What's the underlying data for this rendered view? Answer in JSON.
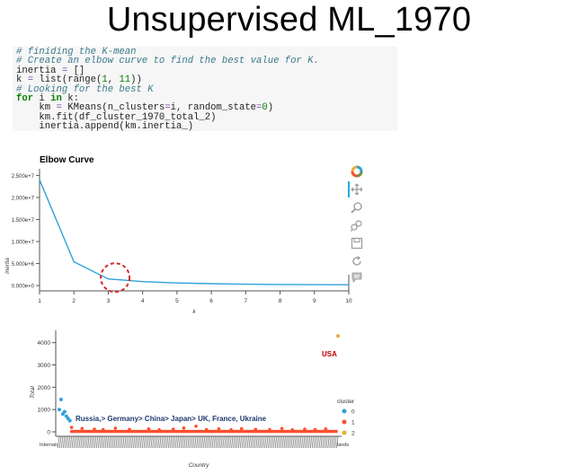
{
  "slide": {
    "title": "Unsupervised ML_1970"
  },
  "code": {
    "lines": [
      [
        {
          "t": "# finiding the K-mean",
          "c": "cm"
        }
      ],
      [
        {
          "t": "# Create an elbow curve to find the best value for K.",
          "c": "cm"
        }
      ],
      [
        {
          "t": "inertia ",
          "c": "pl"
        },
        {
          "t": "=",
          "c": "op"
        },
        {
          "t": " []",
          "c": "pl"
        }
      ],
      [
        {
          "t": "k ",
          "c": "pl"
        },
        {
          "t": "=",
          "c": "op"
        },
        {
          "t": " list(range(",
          "c": "pl"
        },
        {
          "t": "1",
          "c": "num"
        },
        {
          "t": ", ",
          "c": "pl"
        },
        {
          "t": "11",
          "c": "num"
        },
        {
          "t": "))",
          "c": "pl"
        }
      ],
      [
        {
          "t": "# Looking for the best K",
          "c": "cm"
        }
      ],
      [
        {
          "t": "for",
          "c": "kw"
        },
        {
          "t": " i ",
          "c": "pl"
        },
        {
          "t": "in",
          "c": "kw"
        },
        {
          "t": " k:",
          "c": "pl"
        }
      ],
      [
        {
          "t": "    km ",
          "c": "pl"
        },
        {
          "t": "=",
          "c": "op"
        },
        {
          "t": " KMeans(n_clusters",
          "c": "pl"
        },
        {
          "t": "=",
          "c": "op"
        },
        {
          "t": "i, random_state",
          "c": "pl"
        },
        {
          "t": "=",
          "c": "op"
        },
        {
          "t": "0",
          "c": "num"
        },
        {
          "t": ")",
          "c": "pl"
        }
      ],
      [
        {
          "t": "    km.fit(df_cluster_1970_total_2)",
          "c": "pl"
        }
      ],
      [
        {
          "t": "    inertia.append(km.inertia_)",
          "c": "pl"
        }
      ]
    ]
  },
  "toolbar": {
    "icons": [
      "bokeh-logo-icon",
      "pan-icon",
      "box-zoom-icon",
      "wheel-zoom-icon",
      "save-icon",
      "reset-icon",
      "hover-icon"
    ]
  },
  "colors": {
    "elbow_line": "#30a2da",
    "cluster_0": "#30a2da",
    "cluster_1": "#fc4f30",
    "cluster_2": "#e5ae38",
    "highlight_circle": "#d62728",
    "label_blue": "#1f3a6e",
    "label_red": "#c00000",
    "toolbar_active": "#26aae1"
  },
  "chart_data": [
    {
      "type": "line",
      "title": "Elbow Curve",
      "xlabel": "k",
      "ylabel": "inertia",
      "x": [
        1,
        2,
        3,
        4,
        5,
        6,
        7,
        8,
        9,
        10
      ],
      "y": [
        24000000,
        5400000,
        1500000,
        900000,
        600000,
        420000,
        300000,
        250000,
        200000,
        180000
      ],
      "xlim": [
        1,
        10
      ],
      "ylim": [
        -1200000,
        26500000
      ],
      "xticks": [
        "1",
        "2",
        "3",
        "4",
        "5",
        "6",
        "7",
        "8",
        "9",
        "10"
      ],
      "yticks": [
        {
          "value": 0,
          "label": "0.000e+0"
        },
        {
          "value": 5000000,
          "label": "5.000e+6"
        },
        {
          "value": 10000000,
          "label": "1.000e+7"
        },
        {
          "value": 15000000,
          "label": "1.500e+7"
        },
        {
          "value": 20000000,
          "label": "2.000e+7"
        },
        {
          "value": 25000000,
          "label": "2.500e+7"
        }
      ],
      "highlight": {
        "x": 3.2,
        "y": 1400000
      },
      "grid": false
    },
    {
      "type": "scatter",
      "title": "",
      "xlabel": "Country",
      "ylabel": "Total",
      "ylim": [
        -200,
        4550
      ],
      "yticks": [
        "0",
        "1000",
        "2000",
        "3000",
        "4000"
      ],
      "xtick_first": "Internati",
      "xtick_last": "lands",
      "legend": {
        "title": "cluster",
        "entries": [
          "0",
          "1",
          "2"
        ],
        "placement": "right"
      },
      "n_countries": 160,
      "series": [
        {
          "name": "0",
          "points": [
            [
              1,
              1000
            ],
            [
              2,
              1450
            ],
            [
              3,
              800
            ],
            [
              4,
              900
            ],
            [
              5,
              700
            ],
            [
              6,
              600
            ],
            [
              7,
              500
            ]
          ]
        },
        {
          "name": "1",
          "values_baseline": 20,
          "spikes": [
            [
              8,
              200
            ],
            [
              14,
              150
            ],
            [
              21,
              120
            ],
            [
              26,
              100
            ],
            [
              33,
              160
            ],
            [
              41,
              110
            ],
            [
              52,
              130
            ],
            [
              58,
              90
            ],
            [
              66,
              120
            ],
            [
              72,
              170
            ],
            [
              79,
              250
            ],
            [
              85,
              100
            ],
            [
              92,
              130
            ],
            [
              99,
              90
            ],
            [
              105,
              140
            ],
            [
              113,
              110
            ],
            [
              121,
              100
            ],
            [
              128,
              150
            ],
            [
              134,
              90
            ],
            [
              141,
              120
            ],
            [
              147,
              100
            ],
            [
              153,
              130
            ]
          ]
        },
        {
          "name": "2",
          "points": [
            [
              160,
              4300
            ]
          ]
        }
      ],
      "annotations": [
        {
          "text": "Russia,> Germany> China> Japan> UK, France, Ukraine",
          "color": "label_blue"
        },
        {
          "text": "USA",
          "color": "label_red"
        }
      ]
    }
  ]
}
